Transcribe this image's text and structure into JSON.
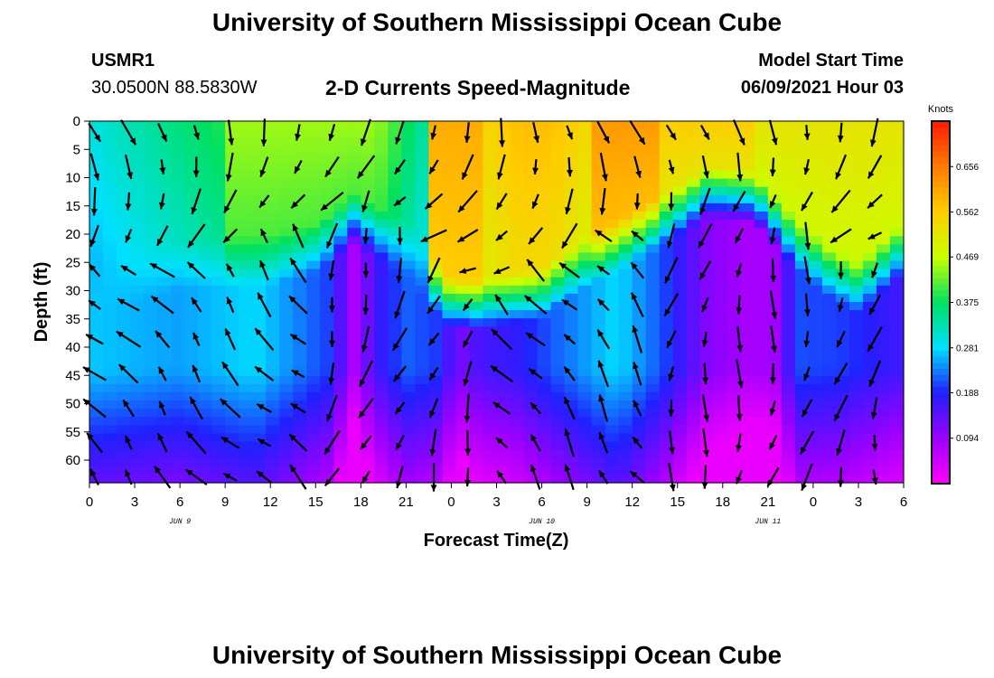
{
  "header": {
    "title": "University of Southern Mississippi Ocean Cube",
    "station": "USMR1",
    "coordinates": "30.0500N  88.5830W",
    "plot_title": "2-D Currents Speed-Magnitude",
    "model_start_label": "Model Start Time",
    "model_start_value": "06/09/2021 Hour 03"
  },
  "footer": {
    "title": "University of Southern Mississippi Ocean Cube"
  },
  "chart_data": {
    "type": "heatmap",
    "xlabel": "Forecast Time(Z)",
    "ylabel": "Depth (ft)",
    "x_tick_labels": [
      "0",
      "3",
      "6",
      "9",
      "12",
      "15",
      "18",
      "21",
      "0",
      "3",
      "6",
      "9",
      "12",
      "15",
      "18",
      "21",
      "0",
      "3",
      "6"
    ],
    "date_labels": [
      {
        "label": "JUN 9",
        "tick_index": 2
      },
      {
        "label": "JUN 10",
        "tick_index": 10
      },
      {
        "label": "JUN 11",
        "tick_index": 15
      }
    ],
    "xlim": [
      0,
      54
    ],
    "y_tick_labels": [
      "0",
      "5",
      "10",
      "15",
      "20",
      "25",
      "30",
      "35",
      "40",
      "45",
      "50",
      "55",
      "60"
    ],
    "ylim": [
      0,
      64
    ],
    "y_inverted": true,
    "colorbar": {
      "title": "Knots",
      "tick_labels": [
        "0.656",
        "0.562",
        "0.469",
        "0.375",
        "0.281",
        "0.188",
        "0.094"
      ],
      "min": 0,
      "max": 0.75,
      "colors": [
        "#ff00ff",
        "#9b00ff",
        "#2020ff",
        "#00e0ff",
        "#00e060",
        "#c8ff00",
        "#ffcc00",
        "#ff7a00",
        "#ff1a00"
      ]
    }
  }
}
